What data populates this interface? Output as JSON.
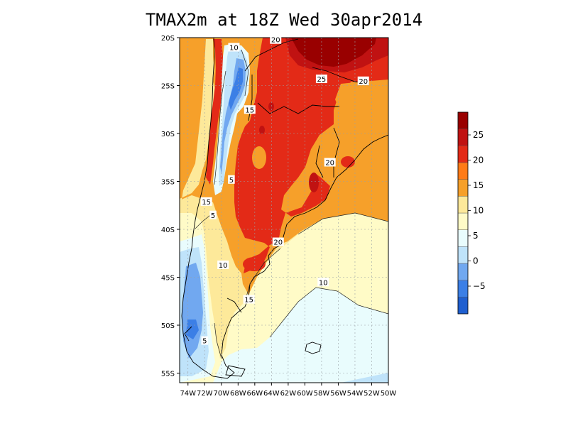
{
  "title": "TMAX2m at 18Z Wed 30apr2014",
  "map": {
    "lat_ticks": [
      "20S",
      "25S",
      "30S",
      "35S",
      "40S",
      "45S",
      "50S",
      "55S"
    ],
    "lon_ticks": [
      "74W",
      "72W",
      "70W",
      "68W",
      "66W",
      "64W",
      "62W",
      "60W",
      "58W",
      "56W",
      "54W",
      "52W",
      "50W"
    ],
    "contour_labels": [
      {
        "text": "20",
        "lon": -63.5,
        "lat": -20.2
      },
      {
        "text": "10",
        "lon": -68.5,
        "lat": -21.0
      },
      {
        "text": "25",
        "lon": -58.0,
        "lat": -24.3
      },
      {
        "text": "20",
        "lon": -53.0,
        "lat": -24.5
      },
      {
        "text": "15",
        "lon": -66.6,
        "lat": -27.5
      },
      {
        "text": "20",
        "lon": -57.0,
        "lat": -33.0
      },
      {
        "text": "5",
        "lon": -68.8,
        "lat": -34.8
      },
      {
        "text": "15",
        "lon": -71.8,
        "lat": -37.1
      },
      {
        "text": "5",
        "lon": -71.0,
        "lat": -38.5
      },
      {
        "text": "20",
        "lon": -63.2,
        "lat": -41.3
      },
      {
        "text": "10",
        "lon": -69.8,
        "lat": -43.7
      },
      {
        "text": "10",
        "lon": -57.8,
        "lat": -45.5
      },
      {
        "text": "15",
        "lon": -66.7,
        "lat": -47.3
      },
      {
        "text": "5",
        "lon": -72.0,
        "lat": -51.6
      }
    ]
  },
  "colorbar": {
    "colors": [
      "#1f5fd0",
      "#3b7fe6",
      "#71a8f0",
      "#bfe3fa",
      "#e9fcfd",
      "#fffbc7",
      "#fde99a",
      "#f6a02a",
      "#ff7b17",
      "#e32a17",
      "#c01212",
      "#990000"
    ],
    "labels": [
      "−5",
      "0",
      "5",
      "10",
      "15",
      "20",
      "25"
    ]
  },
  "chart_data": {
    "type": "heatmap",
    "title": "TMAX2m at 18Z Wed 30apr2014",
    "variable": "TMAX2m",
    "lon_range": [
      -75,
      -50
    ],
    "lat_range": [
      -56,
      -20
    ],
    "contour_levels": [
      -5,
      0,
      5,
      10,
      15,
      20,
      25
    ],
    "regions": [
      {
        "range": "> 25",
        "area": "far north near 20S 57W"
      },
      {
        "range": "20 to 25",
        "area": "north-central Argentina, Paraguay, southern Brazil interior"
      },
      {
        "range": "15 to 20",
        "area": "Chilean coast 20S-37S, northeast, Uruguay, Atlantic near 30S-40S"
      },
      {
        "range": "10 to 15",
        "area": "Patagonia east of Andes, Atlantic 38S-48S"
      },
      {
        "range": "5 to 10",
        "area": "South Atlantic 45S-56S, southern Patagonia"
      },
      {
        "range": "0 to 5",
        "area": "Andes high terrain 22S-35S, southern Andes 40S-53S"
      },
      {
        "range": "< 0",
        "area": "isolated Andes peaks near 26S-28S and 48S-50S"
      }
    ]
  }
}
